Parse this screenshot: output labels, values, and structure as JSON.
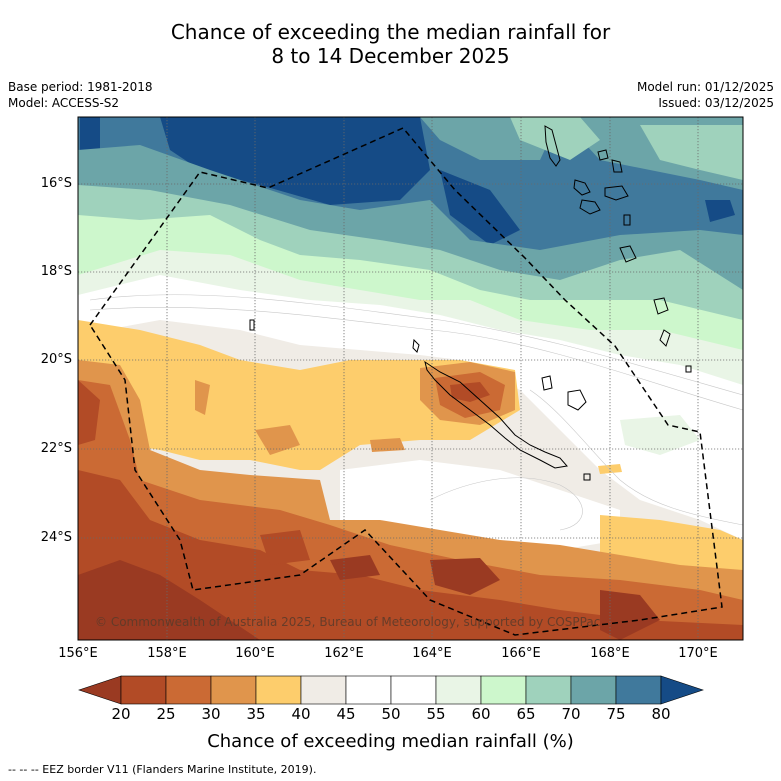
{
  "title": {
    "line1": "Chance of exceeding the median rainfall for",
    "line2": "8 to 14 December 2025"
  },
  "meta": {
    "base_period": "Base period: 1981-2018",
    "model": "Model: ACCESS-S2",
    "model_run": "Model run: 01/12/2025",
    "issued": "Issued: 03/12/2025"
  },
  "map": {
    "lat_labels": [
      "16°S",
      "18°S",
      "20°S",
      "22°S",
      "24°S"
    ],
    "lon_labels": [
      "156°E",
      "158°E",
      "160°E",
      "162°E",
      "164°E",
      "166°E",
      "168°E",
      "170°E"
    ],
    "copyright": "© Commonwealth of Australia 2025, Bureau of Meteorology, supported by COSPPac"
  },
  "colorbar": {
    "ticks": [
      "20",
      "25",
      "30",
      "35",
      "40",
      "45",
      "50",
      "55",
      "60",
      "65",
      "70",
      "75",
      "80"
    ],
    "colors": [
      "#9a3a22",
      "#b24b26",
      "#cb6a34",
      "#e0954c",
      "#fdcd6c",
      "#f0ece6",
      "#ffffff",
      "#ffffff",
      "#e9f5e6",
      "#cdf7cc",
      "#9fd2bc",
      "#6ca5a8",
      "#40799c",
      "#154b86"
    ],
    "label": "Chance of exceeding median rainfall (%)"
  },
  "footnote": "-- -- -- EEZ border V11 (Flanders Marine Institute, 2019)."
}
